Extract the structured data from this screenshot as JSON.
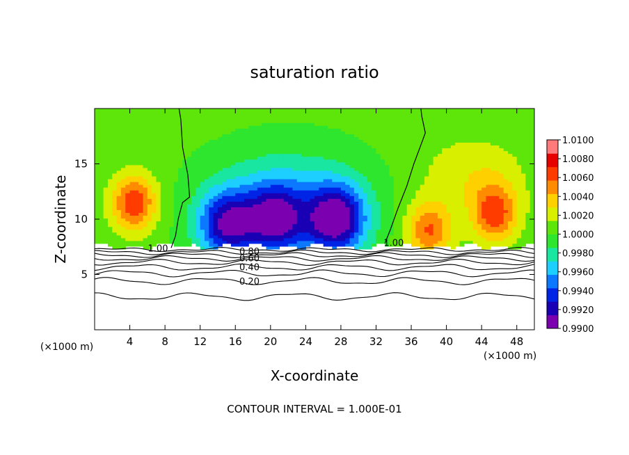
{
  "chart_data": {
    "type": "heatmap",
    "title": "saturation ratio",
    "xlabel": "X-coordinate",
    "ylabel": "Z-coordinate",
    "x_unit_label_left": "(×1000 m)",
    "x_unit_label_right": "(×1000 m)",
    "xlim": [
      0,
      50
    ],
    "ylim": [
      0,
      20
    ],
    "x_ticks": [
      4,
      8,
      12,
      16,
      20,
      24,
      28,
      32,
      36,
      40,
      44,
      48
    ],
    "y_ticks": [
      5,
      10,
      15
    ],
    "footer": "CONTOUR INTERVAL = 1.000E-01",
    "colorbar": {
      "range": [
        0.99,
        1.01
      ],
      "tick_labels": [
        "0.9900",
        "0.9920",
        "0.9940",
        "0.9960",
        "0.9980",
        "1.0000",
        "1.0020",
        "1.0040",
        "1.0060",
        "1.0080",
        "1.0100"
      ],
      "colors": [
        "#7a00b0",
        "#1a00b4",
        "#0024e6",
        "#0b78ff",
        "#1ccfff",
        "#19e6a0",
        "#2ee62e",
        "#5ee60a",
        "#d9ef00",
        "#ffd000",
        "#ff8c00",
        "#ff3c00",
        "#e60000",
        "#ff7a7a"
      ]
    },
    "saturated_region": {
      "z_min": 7.3,
      "description_values": {
        "supersaturation_peaks": [
          {
            "x": 4.5,
            "z": 11.5,
            "value": 1.0065
          },
          {
            "x": 38.0,
            "z": 9.0,
            "value": 1.0055
          },
          {
            "x": 45.5,
            "z": 10.5,
            "value": 1.006
          }
        ],
        "subsaturation_minima": [
          {
            "x": 15.0,
            "z": 9.5,
            "value": 0.9925
          },
          {
            "x": 20.5,
            "z": 10.0,
            "value": 0.9935
          },
          {
            "x": 27.5,
            "z": 10.0,
            "value": 0.9915
          }
        ]
      }
    },
    "contour_labels": [
      {
        "text": "1.00",
        "x": 7.2,
        "z": 7.4
      },
      {
        "text": "1.00",
        "x": 34.0,
        "z": 7.9
      },
      {
        "text": "0.80",
        "x": 17.6,
        "z": 7.1
      },
      {
        "text": "0.60",
        "x": 17.6,
        "z": 6.5
      },
      {
        "text": "0.40",
        "x": 17.6,
        "z": 5.7
      },
      {
        "text": "0.20",
        "x": 17.6,
        "z": 4.4
      }
    ],
    "contour_levels": [
      0.2,
      0.4,
      0.6,
      0.8,
      1.0
    ]
  }
}
